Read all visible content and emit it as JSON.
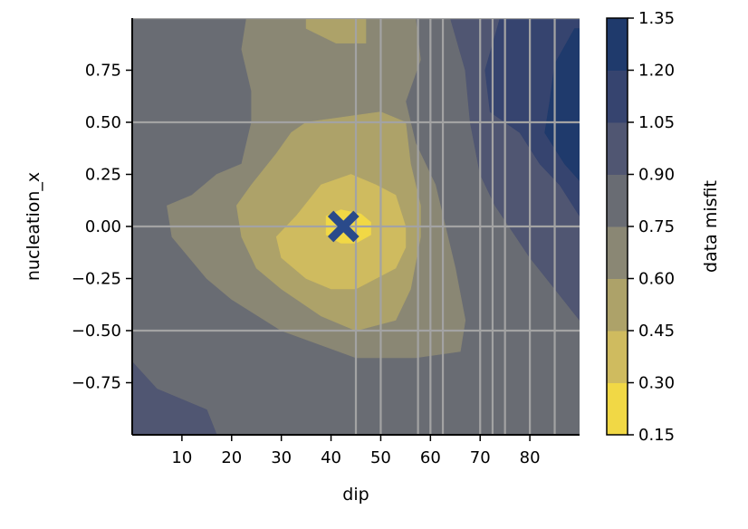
{
  "chart_data": {
    "type": "heatmap",
    "subtype": "filled-contour",
    "xlabel": "dip",
    "ylabel": "nucleation_x",
    "xlim": [
      0,
      90
    ],
    "ylim": [
      -1.0,
      1.0
    ],
    "xticks": [
      10,
      20,
      30,
      40,
      50,
      60,
      70,
      80
    ],
    "yticks": [
      -0.75,
      -0.5,
      -0.25,
      0.0,
      0.25,
      0.5,
      0.75
    ],
    "ytick_labels": [
      "−0.75",
      "−0.50",
      "−0.25",
      "0.00",
      "0.25",
      "0.50",
      "0.75"
    ],
    "colorbar": {
      "label": "data misfit",
      "levels": [
        0.15,
        0.3,
        0.45,
        0.6,
        0.75,
        0.9,
        1.05,
        1.2,
        1.35
      ],
      "tick_labels": [
        "0.15",
        "0.30",
        "0.45",
        "0.60",
        "0.75",
        "0.90",
        "1.05",
        "1.20",
        "1.35"
      ],
      "colors": [
        "#f1d845",
        "#cfbb5f",
        "#ada269",
        "#8a8774",
        "#696c73",
        "#505672",
        "#36446f",
        "#1f3a6c"
      ]
    },
    "grid": {
      "x": [
        45,
        50,
        57.5,
        60,
        62.5,
        70,
        72.5,
        75,
        80,
        85
      ],
      "y": [
        -0.5,
        0.0,
        0.5,
        1.0
      ]
    },
    "grid_color": "#a3a3a3",
    "best_fit": {
      "x": 42.5,
      "y": 0.0,
      "marker": "X",
      "color": "#2a4a8a"
    },
    "regions": [
      {
        "level_index": 4,
        "color": "#696c73",
        "points": [
          [
            0,
            -1
          ],
          [
            90,
            -1
          ],
          [
            90,
            1
          ],
          [
            0,
            1
          ]
        ]
      },
      {
        "level_index": 5,
        "color": "#505672",
        "points": [
          [
            0,
            -1
          ],
          [
            0,
            -0.65
          ],
          [
            5,
            -0.78
          ],
          [
            15,
            -0.88
          ],
          [
            17,
            -1
          ]
        ]
      },
      {
        "level_index": 5,
        "color": "#505672",
        "points": [
          [
            64,
            1
          ],
          [
            90,
            1
          ],
          [
            90,
            -0.45
          ],
          [
            85,
            -0.3
          ],
          [
            80,
            -0.15
          ],
          [
            73,
            0.1
          ],
          [
            70,
            0.25
          ],
          [
            68,
            0.5
          ],
          [
            67,
            0.75
          ]
        ]
      },
      {
        "level_index": 6,
        "color": "#36446f",
        "points": [
          [
            74,
            1
          ],
          [
            90,
            1
          ],
          [
            90,
            0.05
          ],
          [
            86,
            0.2
          ],
          [
            82,
            0.3
          ],
          [
            78,
            0.45
          ],
          [
            72,
            0.55
          ],
          [
            71,
            0.75
          ]
        ]
      },
      {
        "level_index": 7,
        "color": "#1f3a6c",
        "points": [
          [
            85,
            0.78
          ],
          [
            89,
            0.95
          ],
          [
            90,
            0.95
          ],
          [
            90,
            0.22
          ],
          [
            87,
            0.3
          ],
          [
            83,
            0.45
          ],
          [
            84,
            0.6
          ]
        ]
      },
      {
        "level_index": 3,
        "color": "#8a8774",
        "points": [
          [
            27,
            1
          ],
          [
            57,
            1
          ],
          [
            58,
            0.8
          ],
          [
            55,
            0.6
          ],
          [
            57,
            0.4
          ],
          [
            61,
            0.2
          ],
          [
            63,
            0.0
          ],
          [
            65,
            -0.2
          ],
          [
            67,
            -0.45
          ],
          [
            66,
            -0.6
          ],
          [
            57,
            -0.63
          ],
          [
            45,
            -0.63
          ],
          [
            30,
            -0.5
          ],
          [
            20,
            -0.35
          ],
          [
            15,
            -0.25
          ],
          [
            8,
            -0.05
          ],
          [
            7,
            0.1
          ],
          [
            12,
            0.15
          ],
          [
            17,
            0.25
          ],
          [
            22,
            0.3
          ],
          [
            24,
            0.5
          ],
          [
            24,
            0.65
          ],
          [
            22,
            0.85
          ],
          [
            23,
            1
          ]
        ]
      },
      {
        "level_index": 2,
        "color": "#ada269",
        "points": [
          [
            35,
            0.5
          ],
          [
            50,
            0.55
          ],
          [
            55,
            0.5
          ],
          [
            56,
            0.3
          ],
          [
            58,
            0.1
          ],
          [
            58,
            -0.05
          ],
          [
            56,
            -0.3
          ],
          [
            53,
            -0.45
          ],
          [
            45,
            -0.5
          ],
          [
            38,
            -0.43
          ],
          [
            30,
            -0.3
          ],
          [
            25,
            -0.2
          ],
          [
            22,
            -0.05
          ],
          [
            21,
            0.1
          ],
          [
            24,
            0.2
          ],
          [
            29,
            0.35
          ],
          [
            32,
            0.45
          ]
        ]
      },
      {
        "level_index": 2,
        "color": "#ada269",
        "points": [
          [
            35,
            1
          ],
          [
            47,
            1
          ],
          [
            47,
            0.88
          ],
          [
            41,
            0.88
          ],
          [
            35,
            0.95
          ]
        ]
      },
      {
        "level_index": 1,
        "color": "#cfbb5f",
        "points": [
          [
            33,
            0.05
          ],
          [
            38,
            0.2
          ],
          [
            44,
            0.25
          ],
          [
            49,
            0.2
          ],
          [
            53,
            0.15
          ],
          [
            55,
            0.0
          ],
          [
            55,
            -0.1
          ],
          [
            53,
            -0.2
          ],
          [
            45,
            -0.3
          ],
          [
            40,
            -0.3
          ],
          [
            35,
            -0.25
          ],
          [
            30,
            -0.15
          ],
          [
            29,
            -0.05
          ]
        ]
      },
      {
        "level_index": 0,
        "color": "#f1d845",
        "points": [
          [
            39,
            0.05
          ],
          [
            42,
            0.08
          ],
          [
            46,
            0.06
          ],
          [
            48,
            0.02
          ],
          [
            48,
            -0.04
          ],
          [
            45,
            -0.08
          ],
          [
            42,
            -0.08
          ],
          [
            39,
            -0.04
          ]
        ]
      }
    ]
  }
}
